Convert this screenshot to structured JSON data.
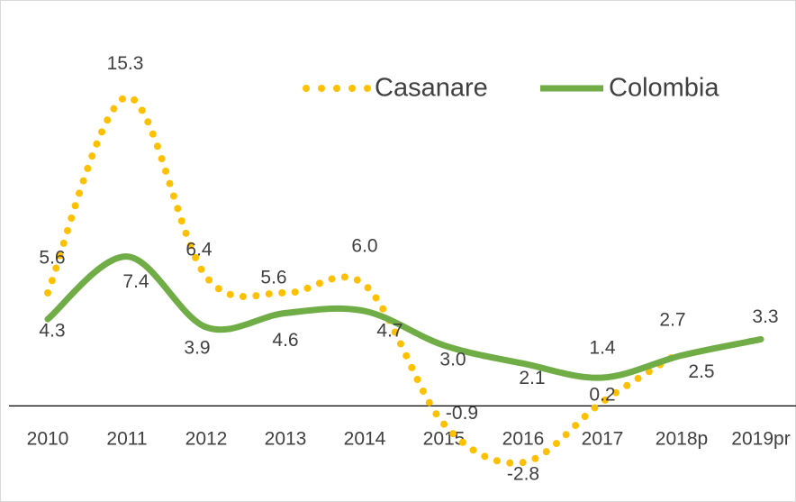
{
  "chart_data": {
    "type": "line",
    "categories": [
      "2010",
      "2011",
      "2012",
      "2013",
      "2014",
      "2015",
      "2016",
      "2017",
      "2018p",
      "2019pr"
    ],
    "series": [
      {
        "name": "Casanare",
        "color": "#ffc000",
        "style": "dotted",
        "values": [
          5.6,
          15.3,
          6.4,
          5.6,
          6.0,
          -0.9,
          -2.8,
          0.2,
          2.7,
          null
        ],
        "value_labels": [
          "5.6",
          "15.3",
          "6.4",
          "5.6",
          "6.0",
          "-0.9",
          "-2.8",
          "0.2",
          "2.7",
          null
        ]
      },
      {
        "name": "Colombia",
        "color": "#70ad47",
        "style": "solid",
        "values": [
          4.3,
          7.4,
          3.9,
          4.6,
          4.7,
          3.0,
          2.1,
          1.4,
          2.5,
          3.3
        ],
        "value_labels": [
          "4.3",
          "7.4",
          "3.9",
          "4.6",
          "4.7",
          "3.0",
          "2.1",
          "1.4",
          "2.5",
          "3.3"
        ]
      }
    ],
    "ylim": [
      -4,
      16
    ],
    "smooth": true,
    "legend": "top-right"
  }
}
